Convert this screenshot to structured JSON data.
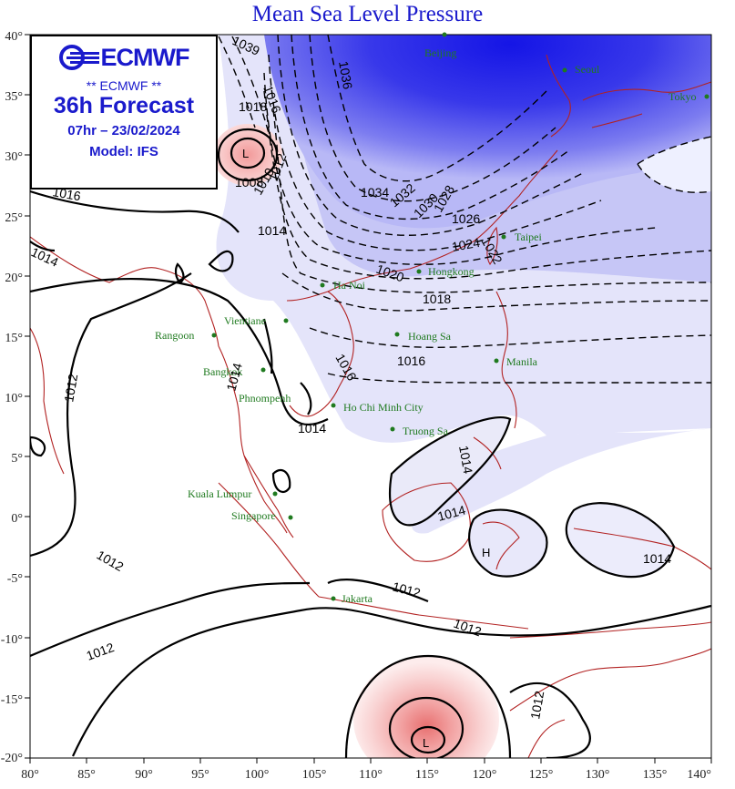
{
  "title": "Mean Sea Level Pressure",
  "legend": {
    "logo_text": "ECMWF",
    "subtitle": "** ECMWF **",
    "forecast": "36h Forecast",
    "valid_time": "07hr – 23/02/2024",
    "model": "Model: IFS"
  },
  "axes": {
    "lon_ticks": [
      "80°",
      "85°",
      "90°",
      "95°",
      "100°",
      "105°",
      "110°",
      "115°",
      "120°",
      "125°",
      "130°",
      "135°",
      "140°"
    ],
    "lat_ticks": [
      "40°",
      "35°",
      "30°",
      "25°",
      "20°",
      "15°",
      "10°",
      "5°",
      "0°",
      "-5°",
      "-10°",
      "-15°",
      "-20°"
    ]
  },
  "cities": [
    "Beijing",
    "Seoul",
    "Tokyo",
    "Taipei",
    "Hongkong",
    "Ha Noi",
    "Vientiane",
    "Rangoon",
    "Bangkok",
    "Phnompenh",
    "Hoang Sa",
    "Manila",
    "Ho Chi Minh City",
    "Truong Sa",
    "Kuala Lumpur",
    "Singapore",
    "Jakarta"
  ],
  "isobar_labels": [
    "1036",
    "1034",
    "1032",
    "1030",
    "1028",
    "1026",
    "1024",
    "1022",
    "1020",
    "1018",
    "1016",
    "1014",
    "1012",
    "1012",
    "1012",
    "1012",
    "1012",
    "1012",
    "1014",
    "1014",
    "1014",
    "1014",
    "1016",
    "1016",
    "1018",
    "1008",
    "1010",
    "1012",
    "1014",
    "1014",
    "1016",
    "1039"
  ],
  "pressure_centers": [
    "L",
    "L",
    "H"
  ],
  "colors": {
    "high_dark": "#1c1ce8",
    "high_mid": "#6a6af0",
    "high_light": "#e6e6fb",
    "low": "#f6c2c2",
    "coast": "#b22222",
    "title": "#1a1acc",
    "city": "#1f7a1f"
  }
}
